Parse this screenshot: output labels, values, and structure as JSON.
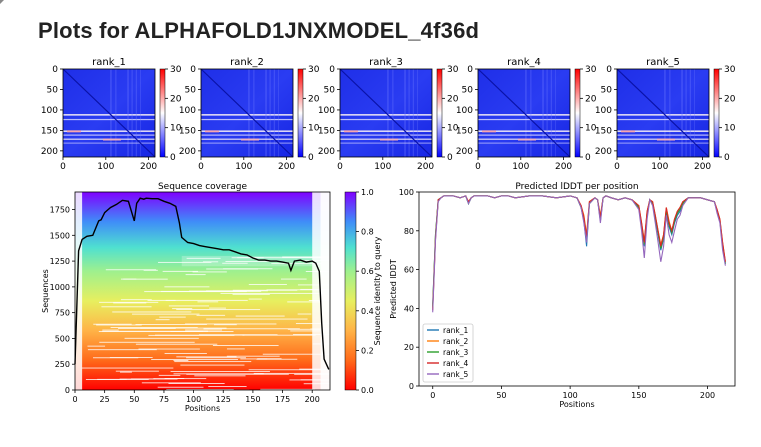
{
  "page": {
    "title": "Plots for ALPHAFOLD1JNXMODEL_4f36d"
  },
  "pae": {
    "panels": [
      {
        "title": "rank_1"
      },
      {
        "title": "rank_2"
      },
      {
        "title": "rank_3"
      },
      {
        "title": "rank_4"
      },
      {
        "title": "rank_5"
      }
    ],
    "x_ticks": [
      "0",
      "100",
      "200"
    ],
    "y_ticks": [
      "0",
      "50",
      "100",
      "150",
      "200"
    ],
    "colorbar_ticks": [
      "0",
      "10",
      "20",
      "30"
    ]
  },
  "chart_data": [
    {
      "type": "heatmap",
      "title": "rank_1 … rank_5",
      "xlim": [
        0,
        215
      ],
      "ylim": [
        215,
        0
      ],
      "colorbar": {
        "range": [
          0,
          30
        ],
        "ticks": [
          0,
          10,
          20,
          30
        ],
        "colors": [
          "#0000ff",
          "#ffffff",
          "#ff0000"
        ]
      },
      "grid": false
    },
    {
      "type": "area",
      "title": "Sequence coverage",
      "xlabel": "Positions",
      "ylabel": "Sequences",
      "x_ticks": [
        0,
        25,
        50,
        75,
        100,
        125,
        150,
        175,
        200
      ],
      "y_ticks": [
        0,
        250,
        500,
        750,
        1000,
        1250,
        1500,
        1750
      ],
      "xlim": [
        0,
        215
      ],
      "ylim": [
        0,
        1920
      ],
      "colorbar": {
        "label": "Sequence identity to query",
        "range": [
          0,
          1
        ],
        "ticks": [
          "0.0",
          "0.2",
          "0.4",
          "0.6",
          "0.8",
          "1.0"
        ]
      },
      "coverage_curve": {
        "x": [
          0,
          3,
          6,
          10,
          15,
          20,
          22,
          25,
          28,
          30,
          35,
          40,
          45,
          50,
          52,
          55,
          58,
          60,
          65,
          70,
          75,
          80,
          85,
          88,
          90,
          95,
          100,
          105,
          110,
          115,
          120,
          125,
          130,
          135,
          140,
          145,
          150,
          155,
          160,
          165,
          170,
          175,
          180,
          182,
          185,
          190,
          195,
          200,
          203,
          206,
          208,
          210,
          212,
          214
        ],
        "y": [
          250,
          1350,
          1460,
          1490,
          1500,
          1640,
          1650,
          1720,
          1750,
          1770,
          1800,
          1840,
          1830,
          1640,
          1810,
          1860,
          1850,
          1860,
          1855,
          1855,
          1830,
          1810,
          1780,
          1620,
          1480,
          1430,
          1420,
          1400,
          1390,
          1380,
          1370,
          1360,
          1360,
          1340,
          1320,
          1310,
          1280,
          1260,
          1260,
          1250,
          1250,
          1240,
          1230,
          1160,
          1250,
          1260,
          1240,
          1250,
          1230,
          1150,
          650,
          300,
          250,
          200
        ]
      },
      "grid": false
    },
    {
      "type": "line",
      "title": "Predicted lDDT per position",
      "xlabel": "Positions",
      "ylabel": "Predicted lDDT",
      "x_ticks": [
        0,
        50,
        100,
        150,
        200
      ],
      "y_ticks": [
        0,
        20,
        40,
        60,
        80,
        100
      ],
      "xlim": [
        -10,
        220
      ],
      "ylim": [
        0,
        100
      ],
      "legend": "bottom-left",
      "x": [
        0,
        2,
        4,
        6,
        8,
        10,
        15,
        20,
        24,
        26,
        28,
        30,
        35,
        40,
        45,
        50,
        55,
        60,
        70,
        80,
        90,
        100,
        105,
        108,
        110,
        112,
        114,
        118,
        120,
        122,
        124,
        126,
        130,
        135,
        140,
        145,
        150,
        152,
        154,
        156,
        158,
        160,
        162,
        164,
        166,
        168,
        170,
        172,
        174,
        176,
        178,
        180,
        182,
        184,
        186,
        190,
        195,
        200,
        205,
        207,
        209,
        211,
        213
      ],
      "series": [
        {
          "name": "rank_1",
          "color": "#1f77b4",
          "values": [
            42,
            78,
            96,
            97,
            98,
            98,
            98,
            97,
            98,
            94,
            97,
            98,
            98,
            98,
            97,
            98,
            98,
            97,
            98,
            98,
            97,
            98,
            97,
            92,
            85,
            72,
            94,
            97,
            96,
            85,
            97,
            98,
            97,
            96,
            97,
            96,
            92,
            82,
            72,
            88,
            96,
            94,
            86,
            78,
            70,
            76,
            90,
            82,
            78,
            84,
            88,
            90,
            94,
            96,
            97,
            97,
            97,
            96,
            95,
            90,
            85,
            72,
            63
          ]
        },
        {
          "name": "rank_2",
          "color": "#ff7f0e",
          "values": [
            40,
            77,
            96,
            97,
            98,
            98,
            98,
            97,
            98,
            95,
            97,
            98,
            98,
            98,
            97,
            98,
            98,
            97,
            98,
            98,
            97,
            98,
            97,
            93,
            88,
            78,
            95,
            97,
            96,
            88,
            97,
            98,
            97,
            96,
            97,
            96,
            93,
            84,
            75,
            90,
            96,
            95,
            88,
            80,
            73,
            78,
            92,
            85,
            80,
            86,
            90,
            92,
            95,
            96,
            97,
            97,
            97,
            96,
            95,
            91,
            86,
            74,
            64
          ]
        },
        {
          "name": "rank_3",
          "color": "#2ca02c",
          "values": [
            41,
            78,
            96,
            97,
            98,
            98,
            98,
            97,
            98,
            94,
            97,
            98,
            98,
            98,
            97,
            98,
            98,
            97,
            98,
            98,
            97,
            98,
            97,
            92,
            86,
            75,
            94,
            97,
            96,
            86,
            97,
            98,
            97,
            96,
            97,
            96,
            92,
            83,
            73,
            89,
            96,
            94,
            87,
            79,
            71,
            77,
            91,
            83,
            79,
            85,
            89,
            91,
            94,
            96,
            97,
            97,
            97,
            96,
            95,
            90,
            85,
            73,
            63
          ]
        },
        {
          "name": "rank_4",
          "color": "#d62728",
          "values": [
            39,
            76,
            96,
            97,
            98,
            98,
            98,
            97,
            98,
            95,
            97,
            98,
            98,
            98,
            97,
            98,
            98,
            97,
            98,
            98,
            97,
            98,
            97,
            93,
            87,
            77,
            95,
            97,
            96,
            87,
            97,
            98,
            97,
            96,
            97,
            96,
            93,
            84,
            74,
            90,
            96,
            95,
            88,
            80,
            72,
            78,
            92,
            84,
            80,
            86,
            90,
            92,
            95,
            96,
            97,
            97,
            97,
            96,
            95,
            91,
            86,
            74,
            64
          ]
        },
        {
          "name": "rank_5",
          "color": "#9467bd",
          "values": [
            38,
            75,
            95,
            97,
            98,
            98,
            98,
            97,
            98,
            94,
            97,
            98,
            98,
            98,
            97,
            98,
            98,
            97,
            98,
            98,
            97,
            98,
            97,
            92,
            84,
            74,
            94,
            97,
            96,
            84,
            97,
            98,
            97,
            96,
            97,
            96,
            91,
            80,
            66,
            86,
            96,
            93,
            84,
            74,
            64,
            72,
            88,
            78,
            74,
            80,
            86,
            88,
            93,
            95,
            97,
            97,
            97,
            96,
            95,
            89,
            84,
            70,
            62
          ]
        }
      ],
      "grid": false
    }
  ]
}
